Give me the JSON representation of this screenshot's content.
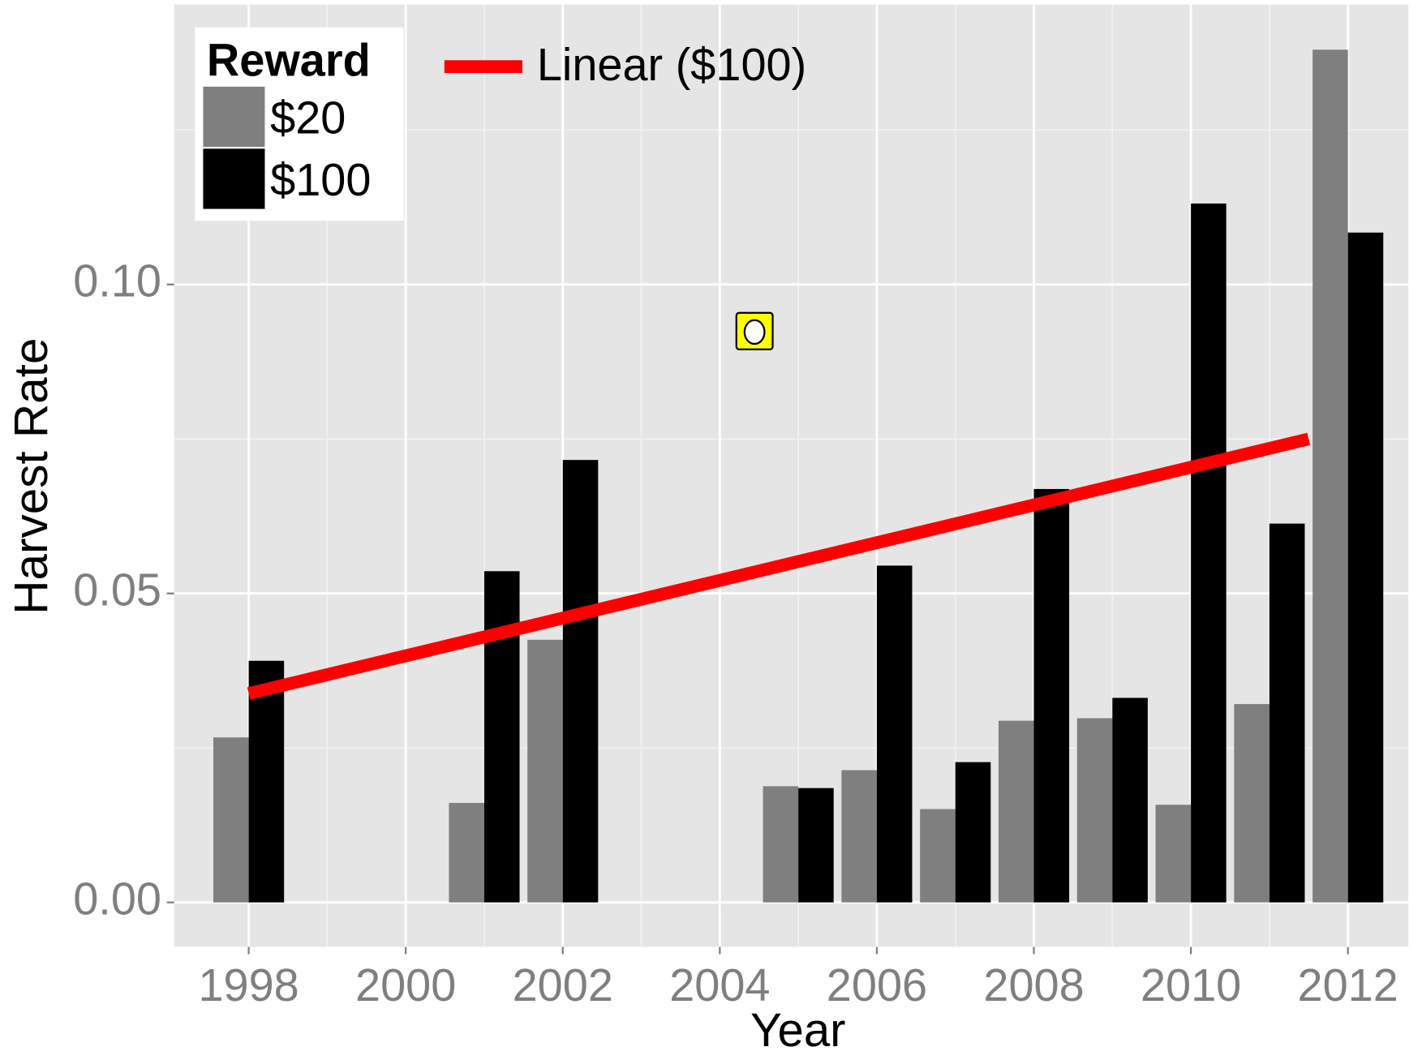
{
  "chart_data": {
    "type": "bar",
    "xlabel": "Year",
    "ylabel": "Harvest Rate",
    "legend_title": "Reward",
    "x": [
      1998,
      2001,
      2002,
      2005,
      2006,
      2007,
      2008,
      2009,
      2010,
      2011,
      2012
    ],
    "series": [
      {
        "name": "$20",
        "color": "#7f7f7f",
        "values": [
          0.0267,
          0.0161,
          0.0425,
          0.0188,
          0.0214,
          0.0151,
          0.0294,
          0.0298,
          0.0158,
          0.0321,
          0.138
        ]
      },
      {
        "name": "$100",
        "color": "#000000",
        "values": [
          0.0391,
          0.0536,
          0.0716,
          0.0185,
          0.0545,
          0.0227,
          0.0669,
          0.0331,
          0.1131,
          0.0613,
          0.1084
        ]
      }
    ],
    "trend": {
      "name": "Linear ($100)",
      "color": "#ff0000",
      "x": [
        1998,
        2011.5
      ],
      "values": [
        0.0338,
        0.075
      ]
    },
    "xlim": [
      1997.05,
      2012.77
    ],
    "xticks": [
      1998,
      2000,
      2002,
      2004,
      2006,
      2008,
      2010,
      2012
    ],
    "ylim": [
      -0.0072,
      0.1453
    ],
    "yticks": [
      {
        "value": 0,
        "label": "0.00"
      },
      0.05,
      {
        "value": 0.1,
        "label": "0.10"
      }
    ],
    "grid": true
  }
}
